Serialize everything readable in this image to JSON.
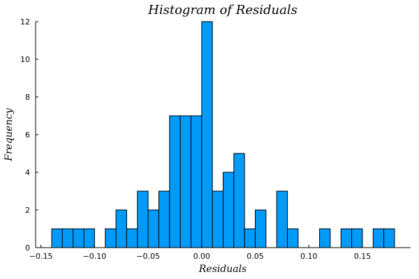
{
  "chart_data": {
    "type": "bar",
    "title": "Histogram of Residuals",
    "xlabel": "Residuals",
    "ylabel": "Frequency",
    "bar_color": "#009af9",
    "edge_color": "#000000",
    "bin_width": 0.01,
    "xlim": [
      -0.155,
      0.195
    ],
    "ylim": [
      0,
      12
    ],
    "xticks": [
      -0.15,
      -0.1,
      -0.05,
      0.0,
      0.05,
      0.1,
      0.15
    ],
    "xtick_labels": [
      "−0.15",
      "−0.10",
      "−0.05",
      "0.00",
      "0.05",
      "0.10",
      "0.15"
    ],
    "yticks": [
      0,
      2,
      4,
      6,
      8,
      10,
      12
    ],
    "ytick_labels": [
      "0",
      "2",
      "4",
      "6",
      "8",
      "10",
      "12"
    ],
    "grid": false,
    "bins": [
      {
        "x0": -0.14,
        "x1": -0.13,
        "count": 1
      },
      {
        "x0": -0.13,
        "x1": -0.12,
        "count": 1
      },
      {
        "x0": -0.12,
        "x1": -0.11,
        "count": 1
      },
      {
        "x0": -0.11,
        "x1": -0.1,
        "count": 1
      },
      {
        "x0": -0.09,
        "x1": -0.08,
        "count": 1
      },
      {
        "x0": -0.08,
        "x1": -0.07,
        "count": 2
      },
      {
        "x0": -0.07,
        "x1": -0.06,
        "count": 1
      },
      {
        "x0": -0.06,
        "x1": -0.05,
        "count": 3
      },
      {
        "x0": -0.05,
        "x1": -0.04,
        "count": 2
      },
      {
        "x0": -0.04,
        "x1": -0.03,
        "count": 3
      },
      {
        "x0": -0.03,
        "x1": -0.02,
        "count": 7
      },
      {
        "x0": -0.02,
        "x1": -0.01,
        "count": 7
      },
      {
        "x0": -0.01,
        "x1": 0.0,
        "count": 7
      },
      {
        "x0": 0.0,
        "x1": 0.01,
        "count": 12
      },
      {
        "x0": 0.01,
        "x1": 0.02,
        "count": 3
      },
      {
        "x0": 0.02,
        "x1": 0.03,
        "count": 4
      },
      {
        "x0": 0.03,
        "x1": 0.04,
        "count": 5
      },
      {
        "x0": 0.04,
        "x1": 0.05,
        "count": 1
      },
      {
        "x0": 0.05,
        "x1": 0.06,
        "count": 2
      },
      {
        "x0": 0.07,
        "x1": 0.08,
        "count": 3
      },
      {
        "x0": 0.08,
        "x1": 0.09,
        "count": 1
      },
      {
        "x0": 0.11,
        "x1": 0.12,
        "count": 1
      },
      {
        "x0": 0.13,
        "x1": 0.14,
        "count": 1
      },
      {
        "x0": 0.14,
        "x1": 0.15,
        "count": 1
      },
      {
        "x0": 0.16,
        "x1": 0.17,
        "count": 1
      },
      {
        "x0": 0.17,
        "x1": 0.18,
        "count": 1
      }
    ]
  }
}
